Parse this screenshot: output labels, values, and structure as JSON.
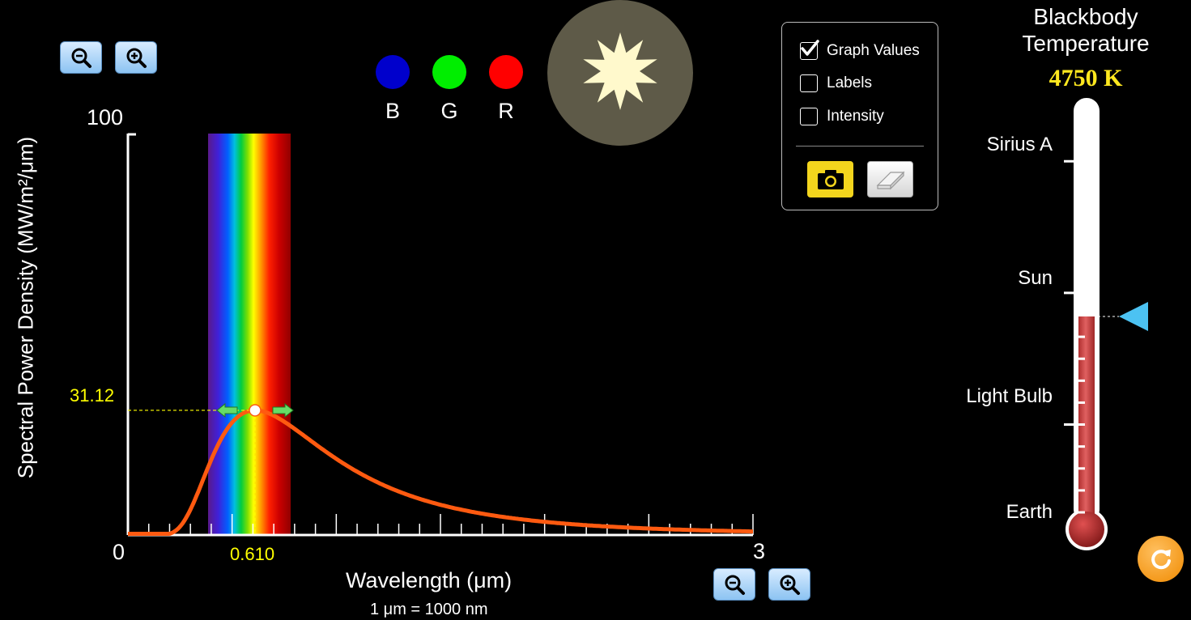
{
  "graph": {
    "y_axis_label": "Spectral Power Density (MW/m²/μm)",
    "y_max_label": "100",
    "origin_label": "0",
    "x_max_label": "3",
    "x_axis_label": "Wavelength (μm)",
    "x_unit_note": "1 μm = 1000 nm",
    "peak_value_label": "31.12",
    "peak_wavelength_label": "0.610",
    "curve_color": "#ff5a10",
    "readout_color": "#ffff00"
  },
  "chart_data": {
    "type": "line",
    "xlim": [
      0,
      3
    ],
    "ylim": [
      0,
      100
    ],
    "temperature_K": 4750,
    "peak": {
      "x": 0.61,
      "y": 31.12
    }
  },
  "color_indicators": [
    {
      "label": "B",
      "color": "#0000cc"
    },
    {
      "label": "G",
      "color": "#00ee00"
    },
    {
      "label": "R",
      "color": "#ff0000"
    }
  ],
  "options": {
    "graph_values": {
      "label": "Graph Values",
      "checked": true
    },
    "labels": {
      "label": "Labels",
      "checked": false
    },
    "intensity": {
      "label": "Intensity",
      "checked": false
    }
  },
  "thermometer": {
    "title_line1": "Blackbody",
    "title_line2": "Temperature",
    "value": "4750 K",
    "fill_fraction": 0.5,
    "markers": {
      "sirius": "Sirius A",
      "sun": "Sun",
      "light_bulb": "Light Bulb",
      "earth": "Earth"
    }
  },
  "icons": {
    "zoom_out": "zoom-out-icon",
    "zoom_in": "zoom-in-icon",
    "camera": "camera-icon",
    "eraser": "eraser-icon",
    "reset": "reset-icon",
    "star": "star-icon",
    "slider": "triangle-slider-icon"
  }
}
